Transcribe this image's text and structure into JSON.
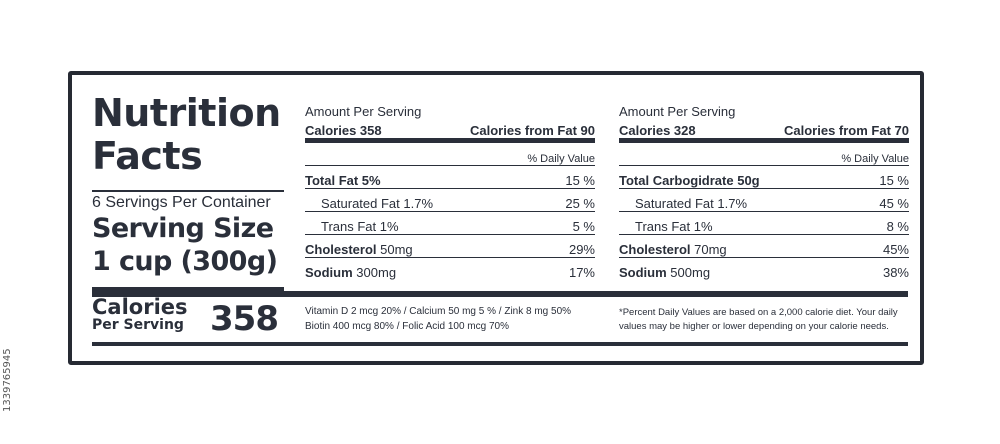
{
  "side_id": "1339765945",
  "left": {
    "title_line1": "Nutrition",
    "title_line2": "Facts",
    "servings": "6 Servings Per Container",
    "serving_size_label": "Serving Size",
    "serving_size_value": "1 cup (300g)",
    "calories_word": "Calories",
    "per_serving": "Per Serving",
    "calories_value": "358"
  },
  "panel1": {
    "amount": "Amount Per Serving",
    "calories": "Calories 358",
    "calories_fat": "Calories from Fat 90",
    "dv": "% Daily Value",
    "rows": [
      {
        "name": "Total Fat 5%",
        "value": "15 %"
      },
      {
        "name": "Saturated Fat 1.7%",
        "value": "25 %"
      },
      {
        "name": "Trans Fat 1%",
        "value": "5 %"
      },
      {
        "name": "Cholesterol",
        "amount": "50mg",
        "value": "29%"
      },
      {
        "name": "Sodium",
        "amount": "300mg",
        "value": "17%"
      }
    ],
    "footnote_line1": "Vitamin D 2 mcg 20% / Calcium 50 mg 5 % / Zink 8 mg 50%",
    "footnote_line2": "Biotin 400 mcg 80% / Folic Acid 100 mcg 70%"
  },
  "panel2": {
    "amount": "Amount Per Serving",
    "calories": "Calories 328",
    "calories_fat": "Calories from Fat 70",
    "dv": "% Daily Value",
    "rows": [
      {
        "name": "Total Carbogidrate 50g",
        "value": "15 %"
      },
      {
        "name": "Saturated Fat 1.7%",
        "value": "45 %"
      },
      {
        "name": "Trans Fat 1%",
        "value": "8 %"
      },
      {
        "name": "Cholesterol",
        "amount": "70mg",
        "value": "45%"
      },
      {
        "name": "Sodium",
        "amount": "500mg",
        "value": "38%"
      }
    ],
    "footnote_line1": "*Percent Daily Values are based on a 2,000 calorie diet.  Your daily",
    "footnote_line2": "values may be higher or lower depending on your calorie needs."
  }
}
